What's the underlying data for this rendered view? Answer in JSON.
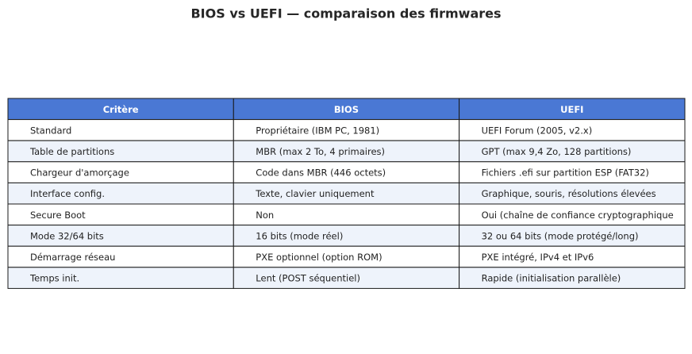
{
  "title": "BIOS vs UEFI — comparaison des firmwares",
  "table": {
    "header": [
      "Critère",
      "BIOS",
      "UEFI"
    ],
    "rows": [
      [
        "Standard",
        "Propriétaire (IBM PC, 1981)",
        "UEFI Forum (2005, v2.x)"
      ],
      [
        "Table de partitions",
        "MBR (max 2 To, 4 primaires)",
        "GPT (max 9,4 Zo, 128 partitions)"
      ],
      [
        "Chargeur d'amorçage",
        "Code dans MBR (446 octets)",
        "Fichiers .efi sur partition ESP (FAT32)"
      ],
      [
        "Interface config.",
        "Texte, clavier uniquement",
        "Graphique, souris, résolutions élevées"
      ],
      [
        "Secure Boot",
        "Non",
        "Oui (chaîne de confiance cryptographique"
      ],
      [
        "Mode 32/64 bits",
        "16 bits (mode réel)",
        "32 ou 64 bits (mode protégé/long)"
      ],
      [
        "Démarrage réseau",
        "PXE optionnel (option ROM)",
        "PXE intégré, IPv4 et IPv6"
      ],
      [
        "Temps init.",
        "Lent (POST séquentiel)",
        "Rapide (initialisation parallèle)"
      ]
    ]
  }
}
